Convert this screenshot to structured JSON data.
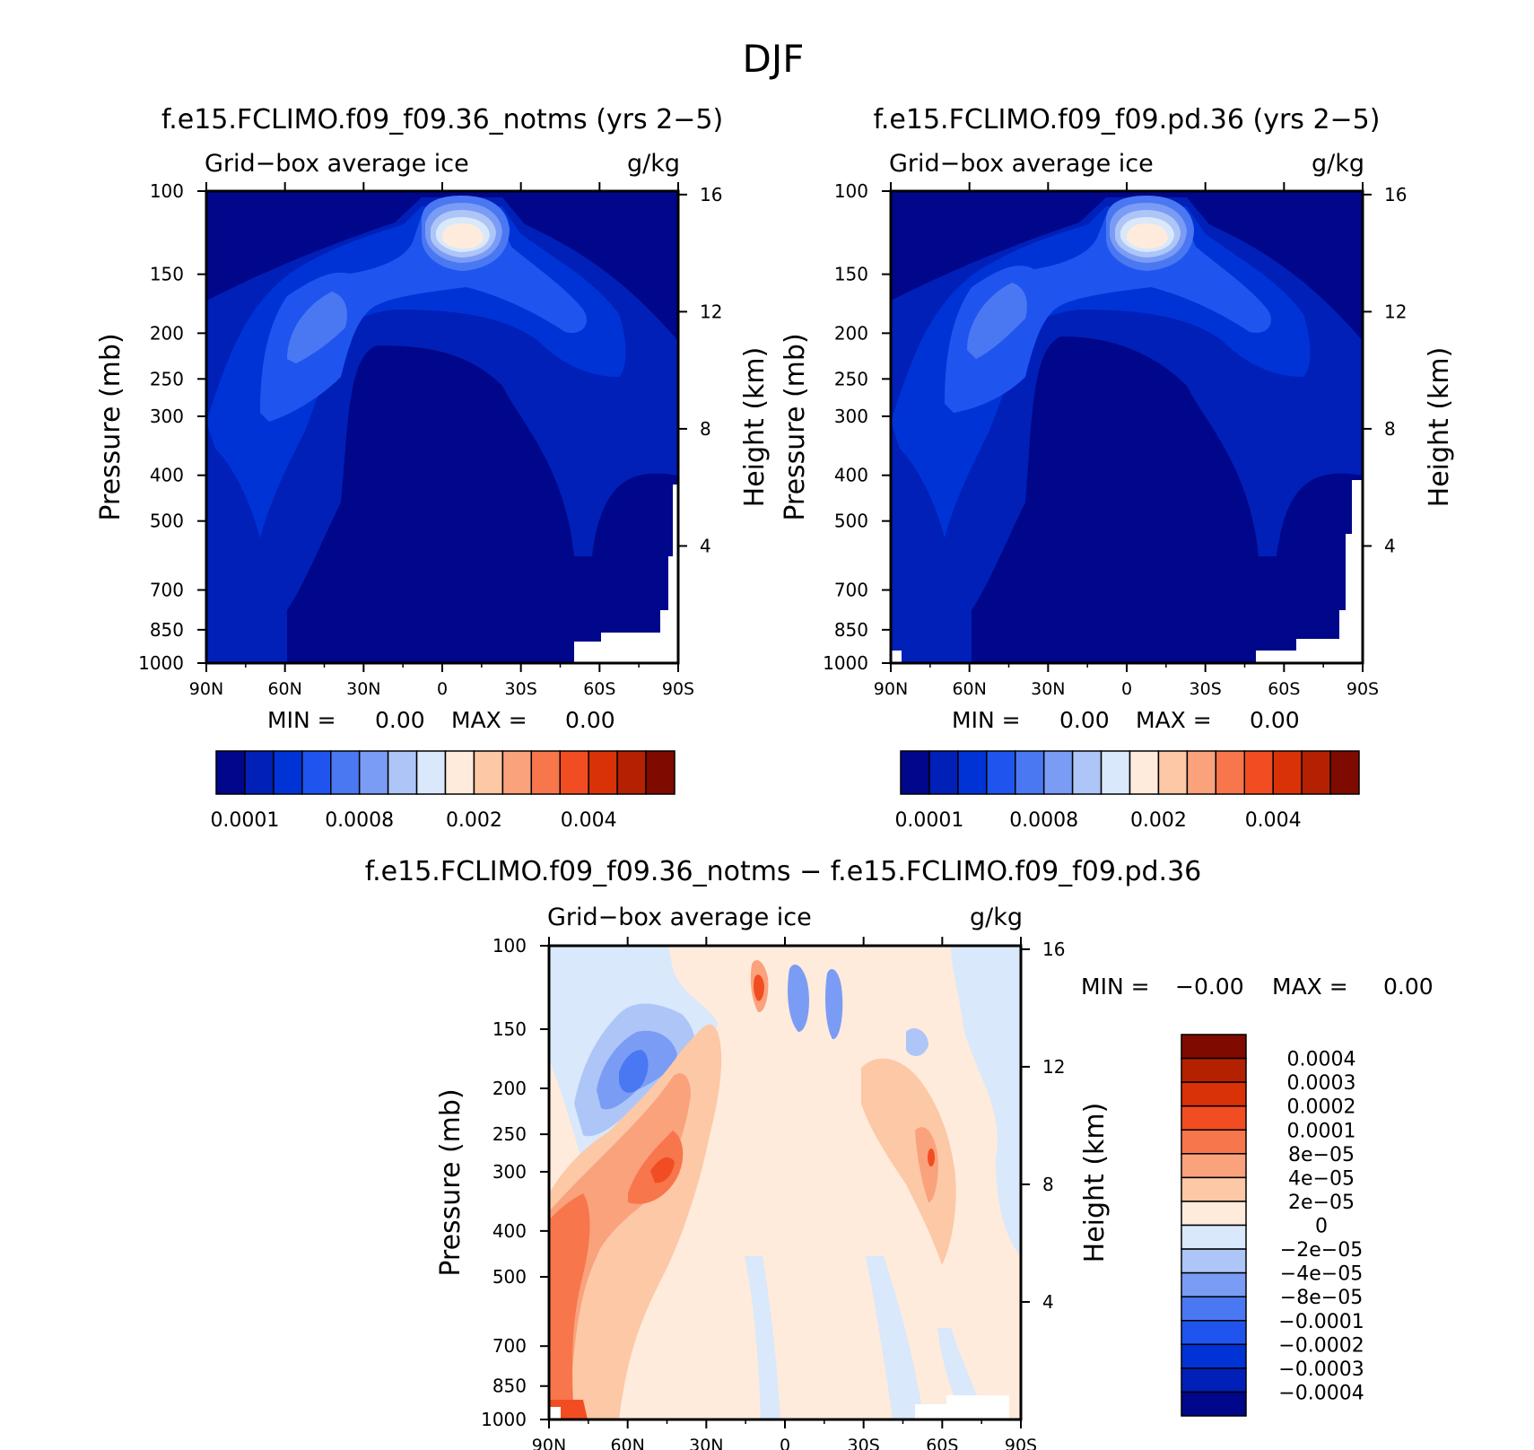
{
  "page_title": "DJF",
  "chart_data": [
    {
      "type": "heatmap",
      "title": "f.e15.FCLIMO.f09_f09.36_notms (yrs 2−5)",
      "variable": "Grid−box average ice",
      "units": "g/kg",
      "ylabel": "Pressure (mb)",
      "ylabel_right": "Height (km)",
      "x_ticks": [
        "90N",
        "60N",
        "30N",
        "0",
        "30S",
        "60S",
        "90S"
      ],
      "y_ticks": [
        "100",
        "150",
        "200",
        "250",
        "300",
        "400",
        "500",
        "700",
        "850",
        "1000"
      ],
      "y_right_ticks": [
        "16",
        "12",
        "8",
        "4"
      ],
      "min_label": "MIN =",
      "min_value": "0.00",
      "max_label": "MAX =",
      "max_value": "0.00",
      "colorbar_labels": [
        "0.0001",
        "0.0008",
        "0.002",
        "0.004"
      ]
    },
    {
      "type": "heatmap",
      "title": "f.e15.FCLIMO.f09_f09.pd.36 (yrs 2−5)",
      "variable": "Grid−box average ice",
      "units": "g/kg",
      "ylabel": "Pressure (mb)",
      "ylabel_right": "Height (km)",
      "x_ticks": [
        "90N",
        "60N",
        "30N",
        "0",
        "30S",
        "60S",
        "90S"
      ],
      "y_ticks": [
        "100",
        "150",
        "200",
        "250",
        "300",
        "400",
        "500",
        "700",
        "850",
        "1000"
      ],
      "y_right_ticks": [
        "16",
        "12",
        "8",
        "4"
      ],
      "min_label": "MIN =",
      "min_value": "0.00",
      "max_label": "MAX =",
      "max_value": "0.00",
      "colorbar_labels": [
        "0.0001",
        "0.0008",
        "0.002",
        "0.004"
      ]
    },
    {
      "type": "heatmap",
      "title": "f.e15.FCLIMO.f09_f09.36_notms − f.e15.FCLIMO.f09_f09.pd.36",
      "variable": "Grid−box average ice",
      "units": "g/kg",
      "ylabel": "Pressure (mb)",
      "ylabel_right": "Height (km)",
      "x_ticks": [
        "90N",
        "60N",
        "30N",
        "0",
        "30S",
        "60S",
        "90S"
      ],
      "y_ticks": [
        "100",
        "150",
        "200",
        "250",
        "300",
        "400",
        "500",
        "700",
        "850",
        "1000"
      ],
      "y_right_ticks": [
        "16",
        "12",
        "8",
        "4"
      ],
      "min_label": "MIN =",
      "min_value": "−0.00",
      "max_label": "MAX =",
      "max_value": "0.00",
      "colorbar_labels": [
        "0.0004",
        "0.0003",
        "0.0002",
        "0.0001",
        "8e−05",
        "4e−05",
        "2e−05",
        "0",
        "−2e−05",
        "−4e−05",
        "−8e−05",
        "−0.0001",
        "−0.0002",
        "−0.0003",
        "−0.0004"
      ]
    }
  ],
  "colors": {
    "abs_scale": [
      "#00078a",
      "#0020b8",
      "#0033d6",
      "#1f55ee",
      "#4a78f2",
      "#7b9cf5",
      "#adc6f7",
      "#d9e8fb",
      "#feebdc",
      "#fcc8a6",
      "#f9a27c",
      "#f7764c",
      "#f24d22",
      "#d93207",
      "#b32100",
      "#7f0b00"
    ],
    "diff_scale": [
      "#00078a",
      "#0020b8",
      "#0033d6",
      "#1f55ee",
      "#4a78f2",
      "#7b9cf5",
      "#adc6f7",
      "#d9e8fb",
      "#feebdc",
      "#fcc8a6",
      "#f9a27c",
      "#f7764c",
      "#f24d22",
      "#d93207",
      "#b32100",
      "#7f0b00"
    ]
  }
}
